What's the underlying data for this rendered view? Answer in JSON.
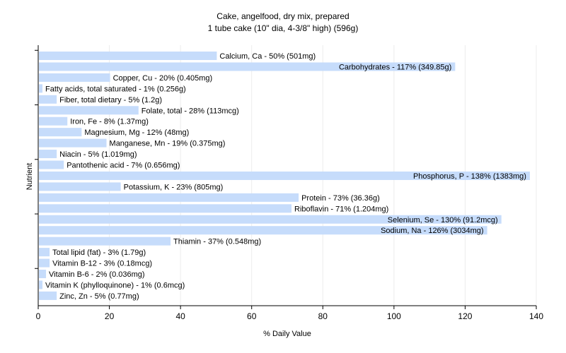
{
  "chart_data": {
    "type": "bar",
    "orientation": "horizontal",
    "title": "Cake, angelfood, dry mix, prepared",
    "subtitle": "1 tube cake (10\" dia, 4-3/8\" high) (596g)",
    "xlabel": "% Daily Value",
    "ylabel": "Nutrient",
    "xlim": [
      0,
      140
    ],
    "xticks": [
      0,
      20,
      40,
      60,
      80,
      100,
      120,
      140
    ],
    "grid": true,
    "bar_color": "#c6dcfb",
    "categories": [
      "Calcium, Ca",
      "Carbohydrates",
      "Copper, Cu",
      "Fatty acids, total saturated",
      "Fiber, total dietary",
      "Folate, total",
      "Iron, Fe",
      "Magnesium, Mg",
      "Manganese, Mn",
      "Niacin",
      "Pantothenic acid",
      "Phosphorus, P",
      "Potassium, K",
      "Protein",
      "Riboflavin",
      "Selenium, Se",
      "Sodium, Na",
      "Thiamin",
      "Total lipid (fat)",
      "Vitamin B-12",
      "Vitamin B-6",
      "Vitamin K (phylloquinone)",
      "Zinc, Zn"
    ],
    "values": [
      50,
      117,
      20,
      1,
      5,
      28,
      8,
      12,
      19,
      5,
      7,
      138,
      23,
      73,
      71,
      130,
      126,
      37,
      3,
      3,
      2,
      1,
      5
    ],
    "labels": [
      "Calcium, Ca - 50% (501mg)",
      "Carbohydrates - 117% (349.85g)",
      "Copper, Cu - 20% (0.405mg)",
      "Fatty acids, total saturated - 1% (0.256g)",
      "Fiber, total dietary - 5% (1.2g)",
      "Folate, total - 28% (113mcg)",
      "Iron, Fe - 8% (1.37mg)",
      "Magnesium, Mg - 12% (48mg)",
      "Manganese, Mn - 19% (0.375mg)",
      "Niacin - 5% (1.019mg)",
      "Pantothenic acid - 7% (0.656mg)",
      "Phosphorus, P - 138% (1383mg)",
      "Potassium, K - 23% (805mg)",
      "Protein - 73% (36.36g)",
      "Riboflavin - 71% (1.204mg)",
      "Selenium, Se - 130% (91.2mcg)",
      "Sodium, Na - 126% (3034mg)",
      "Thiamin - 37% (0.548mg)",
      "Total lipid (fat) - 3% (1.79g)",
      "Vitamin B-12 - 3% (0.18mcg)",
      "Vitamin B-6 - 2% (0.036mg)",
      "Vitamin K (phylloquinone) - 1% (0.6mcg)",
      "Zinc, Zn - 5% (0.77mg)"
    ]
  }
}
